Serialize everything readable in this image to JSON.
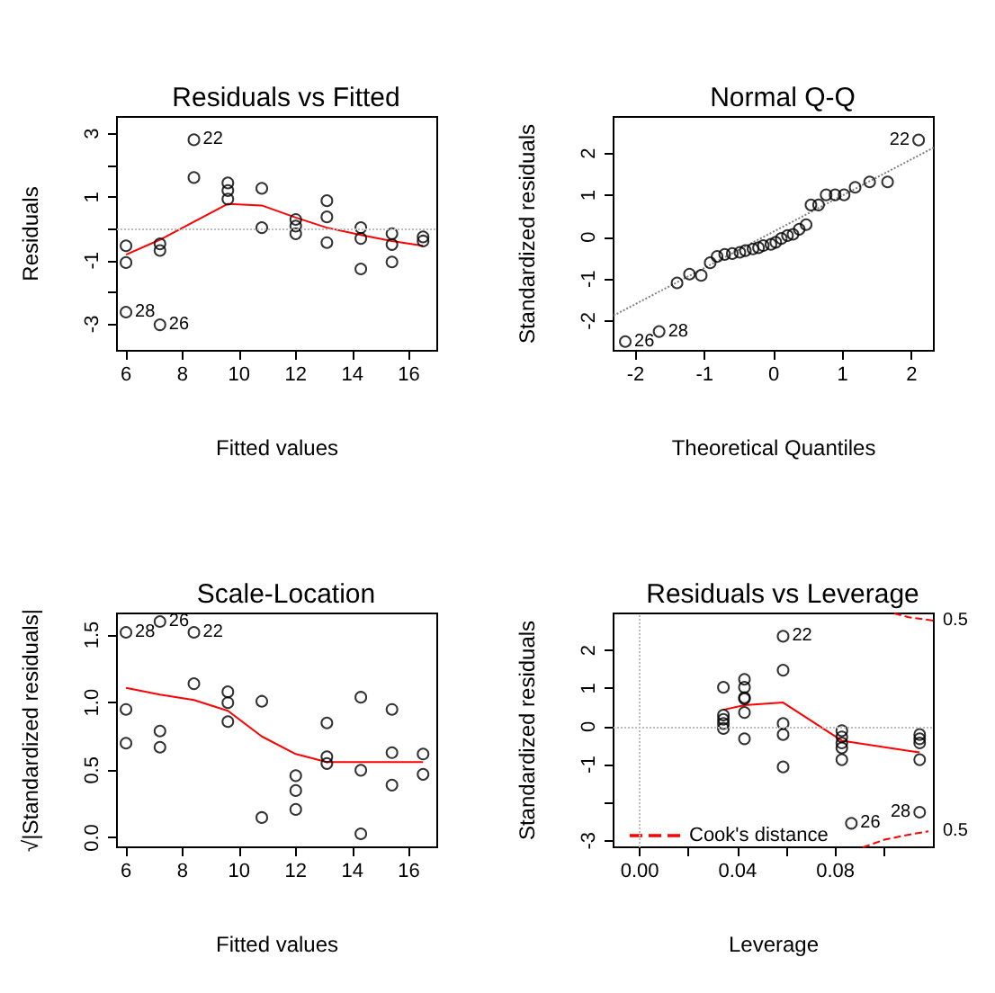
{
  "chart_data": [
    {
      "type": "scatter",
      "title": "Residuals vs Fitted",
      "xlabel": "Fitted values",
      "ylabel": "Residuals",
      "xlim": [
        5.68,
        17.0
      ],
      "ylim": [
        -3.84,
        3.53
      ],
      "xticks": [
        6,
        8,
        10,
        12,
        14,
        16
      ],
      "yticks": [
        -3,
        {
          "value": -2,
          "label": null
        },
        -1,
        {
          "value": 0,
          "label": null
        },
        1,
        {
          "value": 2,
          "label": null
        },
        3
      ],
      "marker": "circle",
      "series": [
        {
          "color": "#000000",
          "x": [
            6,
            6,
            6,
            7.2,
            7.2,
            7.2,
            8.4,
            8.4,
            9.6,
            9.6,
            9.6,
            10.8,
            10.8,
            12,
            12,
            12,
            13.1,
            13.1,
            13.1,
            14.3,
            14.3,
            14.3,
            15.4,
            15.4,
            15.4,
            16.5,
            16.5
          ],
          "values": [
            -0.53,
            -1.06,
            -2.62,
            -0.47,
            -0.68,
            -3.02,
            2.81,
            1.62,
            1.45,
            1.21,
            0.94,
            1.28,
            0.04,
            0.3,
            0.09,
            -0.15,
            0.89,
            0.38,
            -0.43,
            0.04,
            -0.3,
            -1.26,
            -0.15,
            -0.49,
            -1.04,
            -0.25,
            -0.38
          ]
        },
        {
          "type": "line",
          "marker": "none",
          "color": "#ff0000",
          "x": [
            6,
            7.2,
            9.6,
            10.8,
            12,
            13.1,
            14.3,
            15.4,
            16.5
          ],
          "values": [
            -0.81,
            -0.34,
            0.79,
            0.74,
            0.36,
            0.04,
            -0.19,
            -0.38,
            -0.53
          ]
        }
      ],
      "ref_lines": [
        {
          "axis": "y",
          "value": 0,
          "color": "#bebebe",
          "line_style": "dotted"
        }
      ],
      "annotations": [
        {
          "text": "22",
          "x": 8.4,
          "y": 2.81
        },
        {
          "text": "28",
          "x": 6,
          "y": -2.62
        },
        {
          "text": "26",
          "x": 7.2,
          "y": -3.02
        }
      ]
    },
    {
      "type": "scatter",
      "title": "Normal Q-Q",
      "xlabel": "Theoretical Quantiles",
      "ylabel": "Standardized residuals",
      "xlim": [
        -2.32,
        2.32
      ],
      "ylim": [
        -2.71,
        2.87
      ],
      "xticks": [
        -2,
        -1,
        0,
        1,
        2
      ],
      "yticks": [
        -2,
        -1,
        0,
        1,
        2
      ],
      "marker": "circle",
      "series": [
        {
          "color": "#000000",
          "x": [
            -2.15,
            -1.66,
            -1.4,
            -1.22,
            -1.05,
            -0.92,
            -0.82,
            -0.71,
            -0.6,
            -0.49,
            -0.41,
            -0.3,
            -0.22,
            -0.15,
            -0.04,
            0.03,
            0.11,
            0.2,
            0.28,
            0.37,
            0.47,
            0.54,
            0.65,
            0.76,
            0.89,
            1.02,
            1.18,
            1.39,
            1.65,
            2.1
          ],
          "values": [
            -2.49,
            -2.25,
            -1.09,
            -0.88,
            -0.91,
            -0.61,
            -0.46,
            -0.41,
            -0.39,
            -0.36,
            -0.32,
            -0.28,
            -0.25,
            -0.2,
            -0.17,
            -0.12,
            -0.03,
            0.04,
            0.07,
            0.19,
            0.3,
            0.77,
            0.77,
            1.01,
            1.01,
            1.01,
            1.19,
            1.32,
            1.32,
            2.32
          ]
        },
        {
          "type": "line",
          "marker": "none",
          "line_style": "dotted",
          "color": "#808080",
          "x": [
            -2.32,
            2.32
          ],
          "values": [
            -1.87,
            2.14
          ]
        }
      ],
      "annotations": [
        {
          "text": "22",
          "x": 2.1,
          "y": 2.32
        },
        {
          "text": "28",
          "x": -1.66,
          "y": -2.25
        },
        {
          "text": "26",
          "x": -2.15,
          "y": -2.49
        }
      ]
    },
    {
      "type": "scatter",
      "title": "Scale-Location",
      "xlabel": "Fitted values",
      "ylabel": "√|Standardized residuals|",
      "xlim": [
        5.68,
        17.0
      ],
      "ylim": [
        -0.07,
        1.66
      ],
      "xticks": [
        6,
        8,
        10,
        12,
        14,
        16
      ],
      "yticks": [
        {
          "value": 0,
          "label": "0.0"
        },
        {
          "value": 0.5,
          "label": "0.5"
        },
        {
          "value": 1,
          "label": "1.0"
        },
        {
          "value": 1.5,
          "label": "1.5"
        }
      ],
      "marker": "circle",
      "series": [
        {
          "color": "#000000",
          "x": [
            6,
            6,
            6,
            7.2,
            7.2,
            7.2,
            8.4,
            8.4,
            9.6,
            9.6,
            9.6,
            10.8,
            10.8,
            12,
            12,
            12,
            13.1,
            13.1,
            13.1,
            14.3,
            14.3,
            14.3,
            15.4,
            15.4,
            15.4,
            16.5,
            16.5
          ],
          "values": [
            1.52,
            0.95,
            0.7,
            1.6,
            0.79,
            0.67,
            1.52,
            1.14,
            1.08,
            1.0,
            0.86,
            1.01,
            0.15,
            0.46,
            0.35,
            0.21,
            0.85,
            0.6,
            0.55,
            1.04,
            0.5,
            0.03,
            0.95,
            0.63,
            0.39,
            0.62,
            0.47
          ]
        },
        {
          "type": "line",
          "marker": "none",
          "color": "#ff0000",
          "x": [
            6,
            7.2,
            8.4,
            9.6,
            10.8,
            12,
            13.1,
            14.3,
            15.4,
            16.5
          ],
          "values": [
            1.11,
            1.06,
            1.02,
            0.94,
            0.75,
            0.62,
            0.56,
            0.56,
            0.56,
            0.56
          ]
        }
      ],
      "annotations": [
        {
          "text": "28",
          "x": 6,
          "y": 1.52
        },
        {
          "text": "26",
          "x": 7.2,
          "y": 1.6
        },
        {
          "text": "22",
          "x": 8.4,
          "y": 1.52
        }
      ]
    },
    {
      "type": "scatter",
      "title": "Residuals vs Leverage",
      "xlabel": "Leverage",
      "ylabel": "Standardized residuals",
      "xlim": [
        -0.0107,
        0.1202
      ],
      "ylim": [
        -3.17,
        2.97
      ],
      "xticks": [
        {
          "value": 0,
          "label": "0.00"
        },
        {
          "value": 0.02,
          "label": null
        },
        {
          "value": 0.04,
          "label": "0.04"
        },
        {
          "value": 0.06,
          "label": null
        },
        {
          "value": 0.08,
          "label": "0.08"
        },
        {
          "value": 0.1,
          "label": null
        }
      ],
      "yticks": [
        {
          "value": -3,
          "label": "-3"
        },
        {
          "value": -2,
          "label": null
        },
        -1,
        0,
        1,
        2
      ],
      "marker": "circle",
      "legend": "bottom left",
      "series": [
        {
          "color": "#000000",
          "x": [
            0.0342,
            0.0342,
            0.0342,
            0.0342,
            0.0342,
            0.0428,
            0.0428,
            0.0428,
            0.0428,
            0.0428,
            0.0428,
            0.0586,
            0.0586,
            0.0586,
            0.0586,
            0.0586,
            0.0826,
            0.0826,
            0.0826,
            0.0826,
            0.0826,
            0.0865,
            0.1144,
            0.1144,
            0.1144,
            0.1144,
            0.1144
          ],
          "values": [
            1.03,
            0.3,
            0.19,
            0.08,
            -0.05,
            1.24,
            1.03,
            0.76,
            0.73,
            0.37,
            -0.32,
            2.37,
            1.48,
            0.08,
            -0.21,
            -1.06,
            -0.11,
            -0.27,
            -0.43,
            -0.56,
            -0.87,
            -2.54,
            -0.21,
            -0.32,
            -0.43,
            -0.87,
            -2.25
          ]
        },
        {
          "type": "line",
          "marker": "none",
          "color": "#ff0000",
          "x": [
            0.0342,
            0.0428,
            0.0586,
            0.0826,
            0.1144
          ],
          "values": [
            0.44,
            0.56,
            0.63,
            -0.37,
            -0.68
          ]
        },
        {
          "type": "line",
          "marker": "none",
          "line_style": "dashed",
          "color": "#ff0000",
          "name": "Cook's distance",
          "x": [
            0.0912,
            0.1,
            0.11,
            0.118
          ],
          "values": [
            -3.17,
            -2.97,
            -2.84,
            -2.75
          ]
        },
        {
          "type": "line",
          "marker": "none",
          "line_style": "dashed",
          "color": "#ff0000",
          "x": [
            0.104,
            0.11,
            0.1202
          ],
          "values": [
            2.97,
            2.87,
            2.78
          ]
        }
      ],
      "ref_lines": [
        {
          "axis": "x",
          "value": 0,
          "color": "#bebebe",
          "line_style": "dotted"
        },
        {
          "axis": "y",
          "value": 0,
          "color": "#bebebe",
          "line_style": "dotted"
        }
      ],
      "annotations": [
        {
          "text": "22",
          "x": 0.0586,
          "y": 2.37
        },
        {
          "text": "28",
          "x": 0.1144,
          "y": -2.25
        },
        {
          "text": "26",
          "x": 0.0865,
          "y": -2.54
        },
        {
          "text": "0.5",
          "x": 0.1202,
          "y": 2.78
        },
        {
          "text": "0.5",
          "x": 0.1202,
          "y": -2.75
        }
      ]
    }
  ]
}
